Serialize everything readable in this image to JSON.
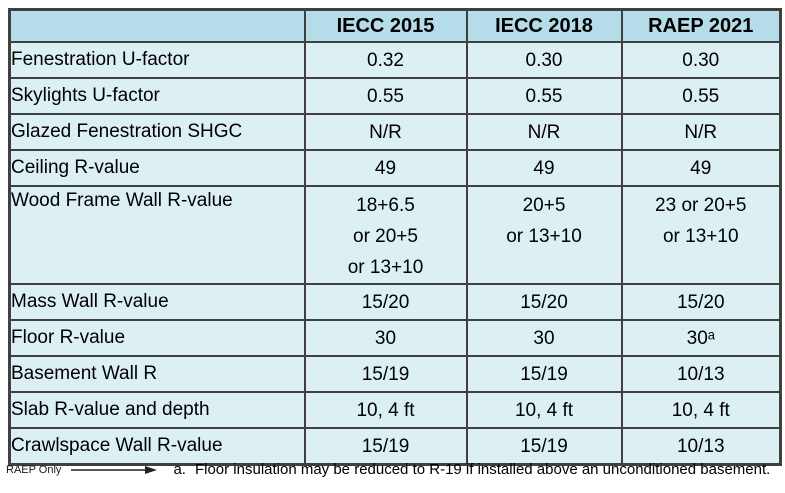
{
  "colors": {
    "header_bg": "#B4DCE9",
    "row_bg": "#DCF0F3",
    "highlight": "#CCF000",
    "raep_white": "#FDFDF5",
    "border": "#404040"
  },
  "table": {
    "columns": [
      "",
      "IECC 2015",
      "IECC 2018",
      "RAEP 2021"
    ],
    "rows": [
      {
        "label": "Fenestration U-factor",
        "values": [
          "0.32",
          "0.30",
          "0.30"
        ],
        "styles": [
          "plain",
          "green",
          "white"
        ],
        "tall": false
      },
      {
        "label": "Skylights U-factor",
        "values": [
          "0.55",
          "0.55",
          "0.55"
        ],
        "styles": [
          "plain",
          "plain",
          "plain"
        ],
        "tall": false
      },
      {
        "label": "Glazed Fenestration SHGC",
        "values": [
          "N/R",
          "N/R",
          "N/R"
        ],
        "styles": [
          "plain",
          "plain",
          "plain"
        ],
        "tall": false
      },
      {
        "label": "Ceiling R-value",
        "values": [
          "49",
          "49",
          "49"
        ],
        "styles": [
          "plain",
          "plain",
          "plain"
        ],
        "tall": false
      },
      {
        "label": "Wood Frame Wall R-value",
        "values": [
          "18+6.5\nor 20+5\nor 13+10",
          "20+5\nor 13+10",
          "23 or 20+5\nor 13+10"
        ],
        "styles": [
          "plain",
          "green",
          "white"
        ],
        "tall": true
      },
      {
        "label": "Mass Wall R-value",
        "values": [
          "15/20",
          "15/20",
          "15/20"
        ],
        "styles": [
          "plain",
          "plain",
          "plain"
        ],
        "tall": false
      },
      {
        "label": "Floor R-value",
        "values": [
          "30",
          "30",
          "30ᵃ"
        ],
        "styles": [
          "plain",
          "plain",
          "plain"
        ],
        "tall": false
      },
      {
        "label": "Basement Wall R",
        "values": [
          "15/19",
          "15/19",
          "10/13"
        ],
        "styles": [
          "plain",
          "plain",
          "plain"
        ],
        "tall": false
      },
      {
        "label": "Slab R-value and depth",
        "values": [
          "10, 4 ft",
          "10, 4 ft",
          "10, 4 ft"
        ],
        "styles": [
          "plain",
          "plain",
          "plain"
        ],
        "tall": false
      },
      {
        "label": "Crawlspace Wall R-value",
        "values": [
          "15/19",
          "15/19",
          "10/13"
        ],
        "styles": [
          "plain",
          "plain",
          "white"
        ],
        "tall": false
      }
    ]
  },
  "footer": {
    "raep_only_label": "RAEP Only",
    "footnote_marker": "a.",
    "footnote_text": "Floor insulation may be reduced to R-19 if installed above an unconditioned basement."
  }
}
